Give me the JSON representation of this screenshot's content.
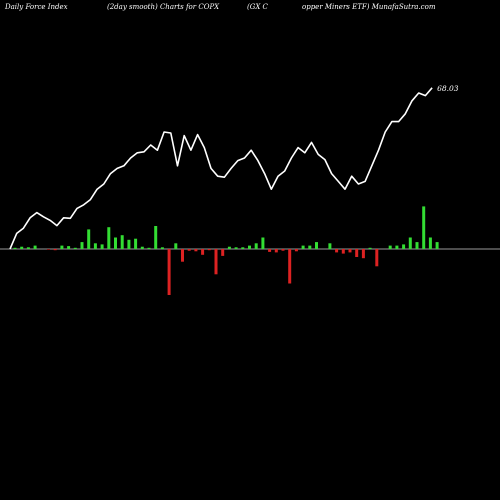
{
  "header": {
    "left": "Daily Force  Index",
    "center": "(2day smooth) Charts for COPX",
    "mid": "(GX  C",
    "right": "opper Miners ETF) MunafaSutra.com"
  },
  "colors": {
    "background": "#000000",
    "line": "#ffffff",
    "positive_bar": "#33dd33",
    "negative_bar": "#dd2222",
    "zero_line": "#9a9a9a"
  },
  "chart_data": {
    "type": "bar",
    "last_value_label": "68.03",
    "line_series": [
      0.0,
      0.3,
      0.4,
      0.6,
      0.7,
      0.62,
      0.55,
      0.45,
      0.6,
      0.59,
      0.78,
      0.85,
      0.95,
      1.15,
      1.25,
      1.45,
      1.55,
      1.6,
      1.75,
      1.85,
      1.87,
      2.0,
      1.9,
      2.25,
      2.23,
      1.6,
      2.18,
      1.9,
      2.2,
      1.95,
      1.55,
      1.4,
      1.38,
      1.55,
      1.7,
      1.75,
      1.9,
      1.7,
      1.45,
      1.15,
      1.4,
      1.5,
      1.75,
      1.95,
      1.85,
      2.05,
      1.82,
      1.72,
      1.45,
      1.3,
      1.15,
      1.4,
      1.25,
      1.3,
      1.6,
      1.9,
      2.25,
      2.45,
      2.45,
      2.6,
      2.85,
      3.0,
      2.95,
      3.1
    ],
    "bar_values": [
      0.1,
      0.2,
      0.15,
      0.3,
      0.0,
      -0.05,
      -0.1,
      0.3,
      0.25,
      0.1,
      0.6,
      1.7,
      0.5,
      0.4,
      1.9,
      1.0,
      1.2,
      0.8,
      0.9,
      0.2,
      0.1,
      2.0,
      0.15,
      -4.0,
      0.5,
      -1.1,
      -0.15,
      -0.2,
      -0.5,
      -0.1,
      -2.2,
      -0.6,
      0.2,
      0.15,
      0.15,
      0.3,
      0.5,
      1.0,
      -0.25,
      -0.3,
      -0.15,
      -3.0,
      -0.2,
      0.3,
      0.3,
      0.6,
      0.0,
      0.5,
      -0.3,
      -0.4,
      -0.3,
      -0.7,
      -0.8,
      0.1,
      -1.5,
      0.0,
      0.3,
      0.3,
      0.4,
      1.0,
      0.6,
      3.7,
      1.0,
      0.6
    ],
    "zero_line": true,
    "grid": false
  }
}
